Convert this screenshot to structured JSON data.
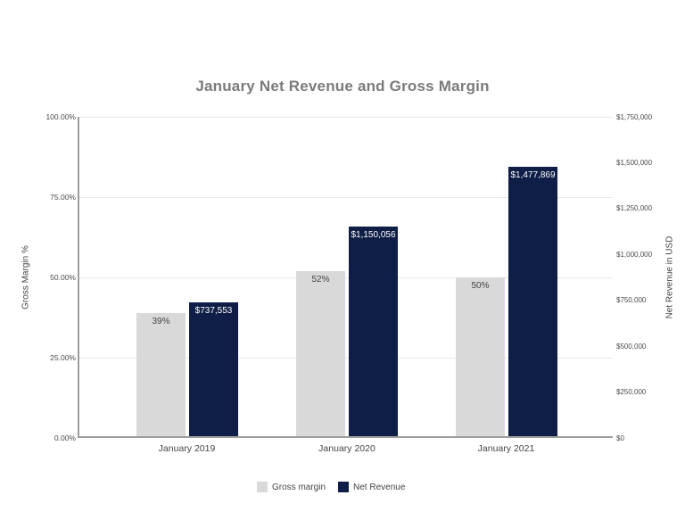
{
  "chart_data": {
    "type": "bar",
    "title": "January Net Revenue and Gross Margin",
    "categories": [
      "January 2019",
      "January 2020",
      "January 2021"
    ],
    "series": [
      {
        "name": "Gross margin",
        "axis": "left",
        "values": [
          39,
          52,
          50
        ],
        "labels": [
          "39%",
          "52%",
          "50%"
        ],
        "color": "#d9d9d9",
        "label_color": "#424242"
      },
      {
        "name": "Net Revenue",
        "axis": "right",
        "values": [
          737553,
          1150056,
          1477869
        ],
        "labels": [
          "$737,553",
          "$1,150,056",
          "$1,477,869"
        ],
        "color": "#0f1e46",
        "label_color": "#ffffff"
      }
    ],
    "left_axis": {
      "title": "Gross Margin %",
      "min": 0,
      "max": 100,
      "ticks": [
        "100.00%",
        "75.00%",
        "50.00%",
        "25.00%",
        "0.00%"
      ]
    },
    "right_axis": {
      "title": "Net Revenue in USD",
      "min": 0,
      "max": 1750000,
      "ticks": [
        "$1,750,000",
        "$1,500,000",
        "$1,250,000",
        "$1,000,000",
        "$750,000",
        "$500,000",
        "$250,000",
        "$0"
      ]
    },
    "legend": [
      {
        "label": "Gross margin",
        "color": "#d9d9d9"
      },
      {
        "label": "Net Revenue",
        "color": "#0f1e46"
      }
    ],
    "grid": true,
    "legend_position": "bottom",
    "colors": {
      "grid": "#e8e8e8",
      "axis_line": "#9e9e9e",
      "title_text": "#7b7b7b",
      "tick_text": "#4a4a4a"
    }
  }
}
